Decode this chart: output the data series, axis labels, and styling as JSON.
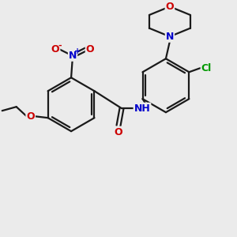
{
  "bg_color": "#ebebeb",
  "bond_color": "#1a1a1a",
  "atom_colors": {
    "O": "#cc0000",
    "N": "#0000cc",
    "Cl": "#009900",
    "H": "#555555",
    "C": "#1a1a1a"
  },
  "figsize": [
    3.0,
    3.0
  ],
  "dpi": 100
}
